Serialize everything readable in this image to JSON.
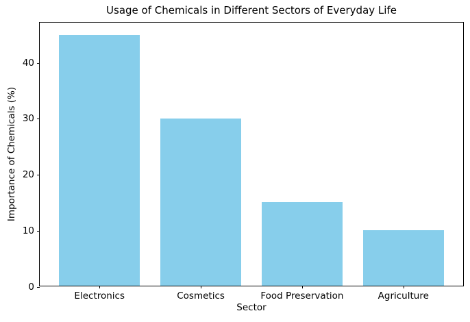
{
  "chart_data": {
    "type": "bar",
    "title": "Usage of Chemicals in Different Sectors of Everyday Life",
    "xlabel": "Sector",
    "ylabel": "Importance of Chemicals (%)",
    "categories": [
      "Electronics",
      "Cosmetics",
      "Food Preservation",
      "Agriculture"
    ],
    "values": [
      45,
      30,
      15,
      10
    ],
    "bar_color": "#87CEEB",
    "axis_color": "#000000",
    "ylim": [
      0,
      47.25
    ],
    "yticks": [
      0,
      10,
      20,
      30,
      40
    ],
    "grid": false,
    "legend": false
  }
}
